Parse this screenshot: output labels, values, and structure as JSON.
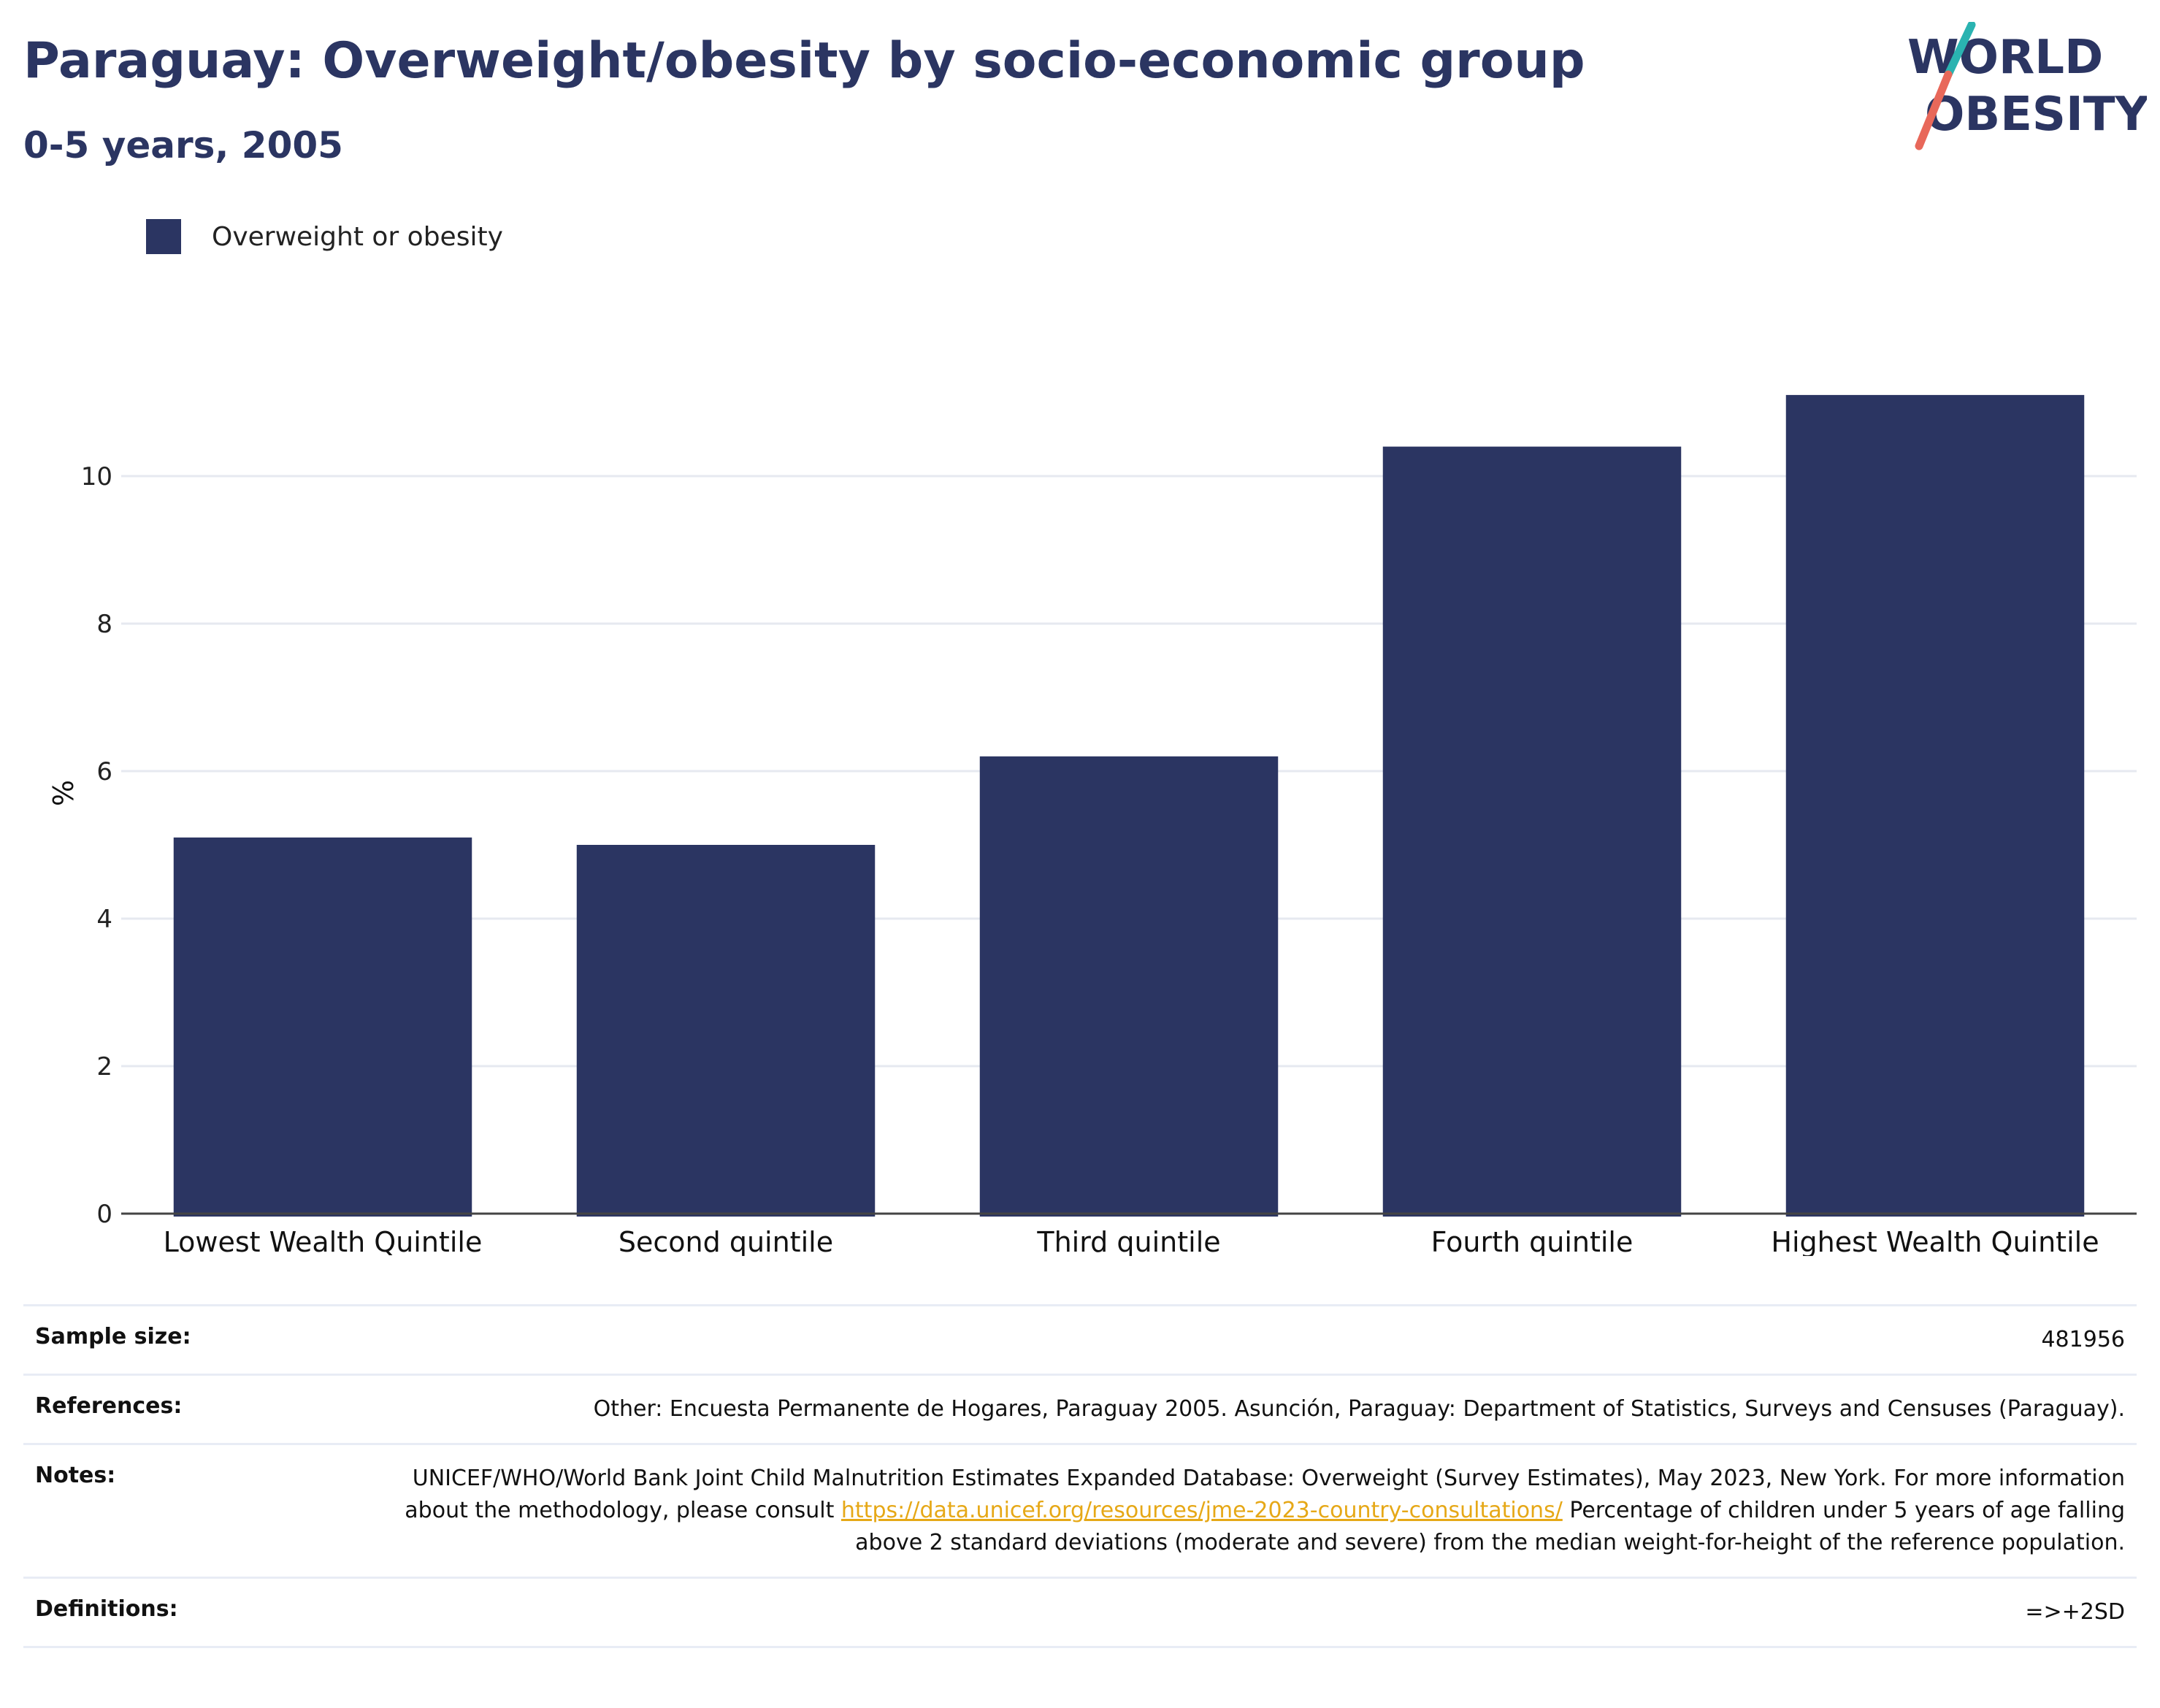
{
  "header": {
    "title": "Paraguay: Overweight/obesity by socio-economic group",
    "subtitle": "0-5 years, 2005"
  },
  "logo": {
    "line1": "WORLD",
    "line2": "OBESITY",
    "colors": {
      "text": "#2b3562",
      "slash_teal": "#2ab3b1",
      "slash_coral": "#e8685a"
    }
  },
  "legend": {
    "items": [
      {
        "label": "Overweight or obesity",
        "color": "#2b3562"
      }
    ]
  },
  "chart_data": {
    "type": "bar",
    "categories": [
      "Lowest Wealth Quintile",
      "Second quintile",
      "Third quintile",
      "Fourth quintile",
      "Highest Wealth Quintile"
    ],
    "series": [
      {
        "name": "Overweight or obesity",
        "values": [
          5.1,
          5.0,
          6.2,
          10.4,
          11.1
        ],
        "color": "#2b3562"
      }
    ],
    "ylabel": "%",
    "xlabel": "",
    "ylim": [
      0,
      12
    ],
    "yticks": [
      0,
      2,
      4,
      6,
      8,
      10
    ],
    "grid": true,
    "legend_position": "top-left"
  },
  "info": {
    "sample_size_label": "Sample size:",
    "sample_size_value": "481956",
    "references_label": "References:",
    "references_value": "Other: Encuesta Permanente de Hogares, Paraguay 2005. Asunción, Paraguay: Department of Statistics, Surveys and Censuses (Paraguay).",
    "notes_label": "Notes:",
    "notes_text_1": "UNICEF/WHO/World Bank Joint Child Malnutrition Estimates Expanded Database: Overweight (Survey Estimates), May 2023, New York. For more information about the methodology, please consult ",
    "notes_link": "https://data.unicef.org/resources/jme-2023-country-consultations/",
    "notes_text_2": " Percentage of children under 5 years of age falling above 2 standard deviations (moderate and severe) from the median weight-for-height of the reference population.",
    "definitions_label": "Definitions:",
    "definitions_value": "=>+2SD"
  }
}
